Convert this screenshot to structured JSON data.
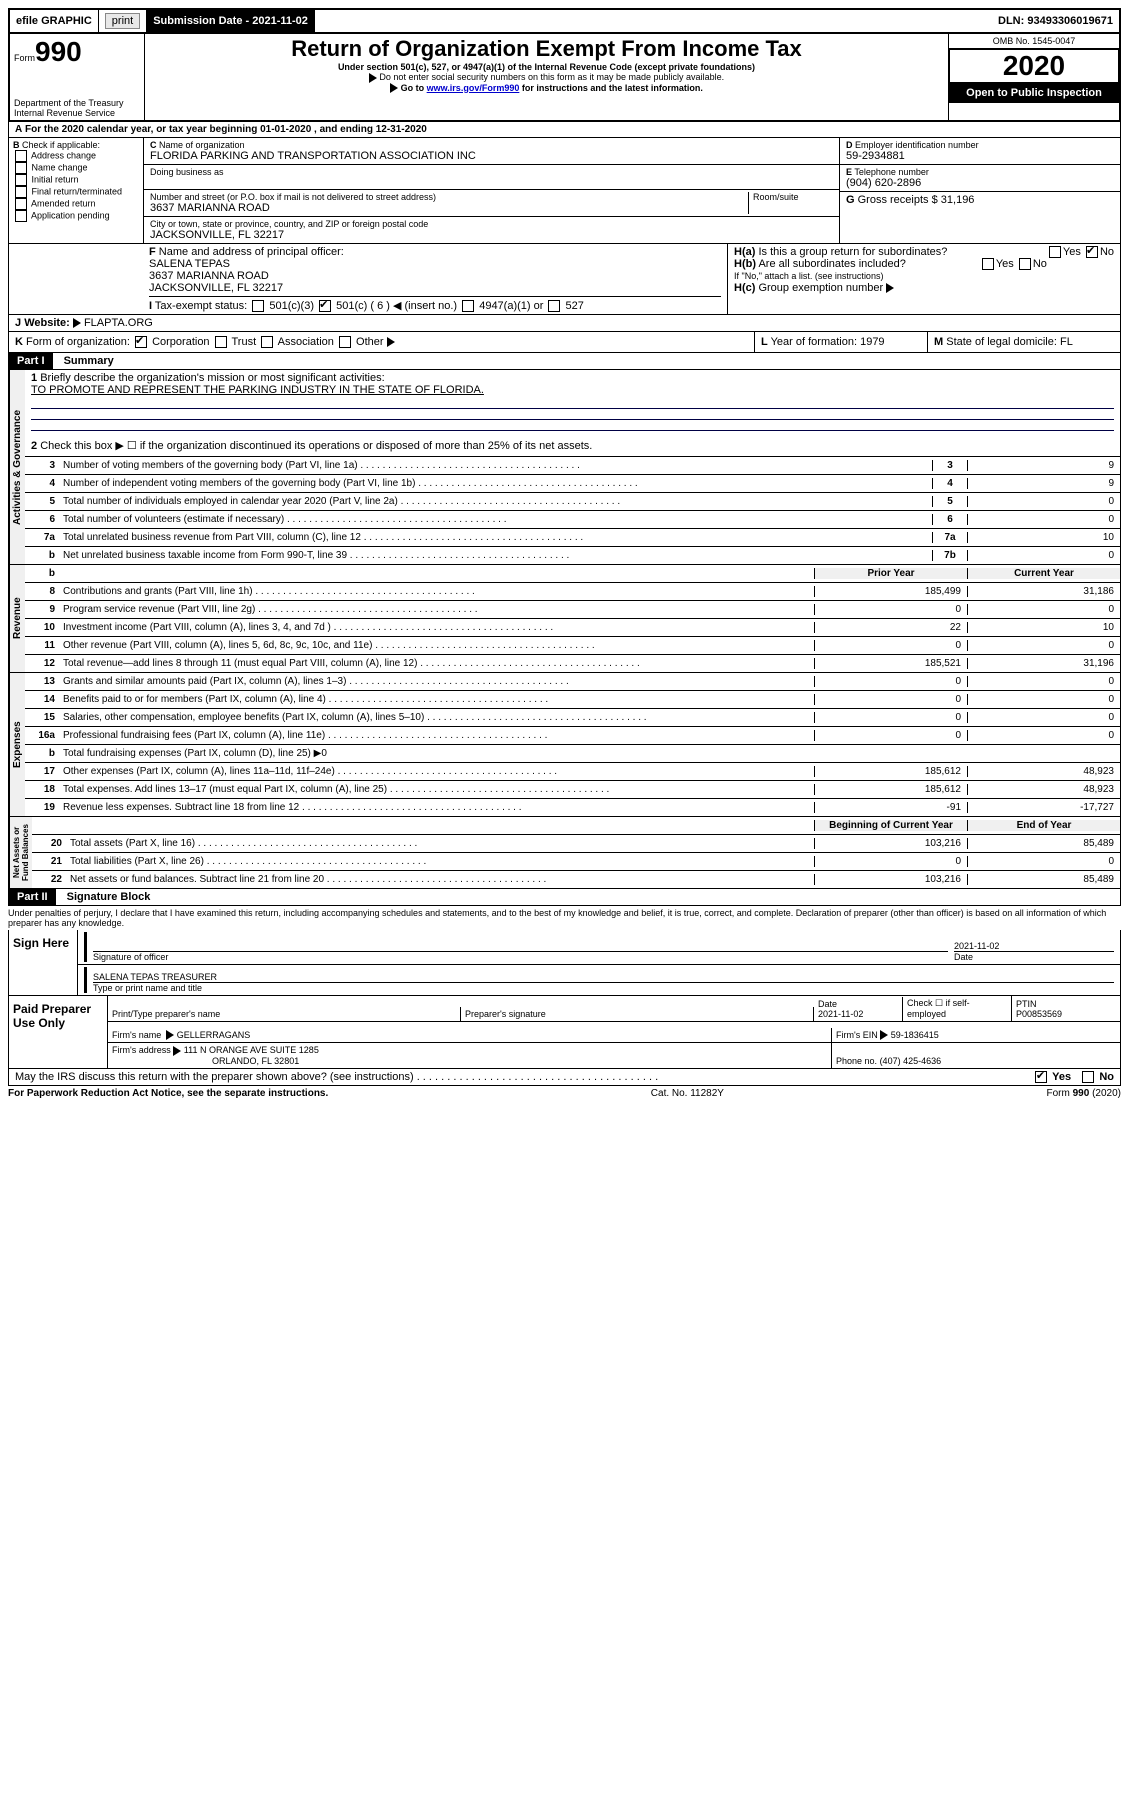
{
  "topbar": {
    "efile": "efile GRAPHIC",
    "print": "print",
    "subdate_label": "Submission Date - 2021-11-02",
    "dln": "DLN: 93493306019671"
  },
  "header": {
    "form_label": "Form",
    "form_no": "990",
    "dept": "Department of the Treasury",
    "irs": "Internal Revenue Service",
    "title": "Return of Organization Exempt From Income Tax",
    "subtitle": "Under section 501(c), 527, or 4947(a)(1) of the Internal Revenue Code (except private foundations)",
    "note1": "Do not enter social security numbers on this form as it may be made publicly available.",
    "note2_a": "Go to ",
    "note2_link": "www.irs.gov/Form990",
    "note2_b": " for instructions and the latest information.",
    "omb": "OMB No. 1545-0047",
    "year": "2020",
    "open": "Open to Public Inspection"
  },
  "A": {
    "text": "For the 2020 calendar year, or tax year beginning 01-01-2020    , and ending 12-31-2020"
  },
  "B": {
    "label": "Check if applicable:",
    "opts": [
      "Address change",
      "Name change",
      "Initial return",
      "Final return/terminated",
      "Amended return",
      "Application pending"
    ]
  },
  "C": {
    "name_label": "Name of organization",
    "name": "FLORIDA PARKING AND TRANSPORTATION ASSOCIATION INC",
    "dba_label": "Doing business as",
    "street_label": "Number and street (or P.O. box if mail is not delivered to street address)",
    "room_label": "Room/suite",
    "street": "3637 MARIANNA ROAD",
    "city_label": "City or town, state or province, country, and ZIP or foreign postal code",
    "city": "JACKSONVILLE, FL  32217"
  },
  "D": {
    "label": "Employer identification number",
    "val": "59-2934881"
  },
  "E": {
    "label": "Telephone number",
    "val": "(904) 620-2896"
  },
  "G": {
    "label": "Gross receipts $",
    "val": "31,196"
  },
  "F": {
    "label": "Name and address of principal officer:",
    "name": "SALENA TEPAS",
    "addr1": "3637 MARIANNA ROAD",
    "addr2": "JACKSONVILLE, FL  32217"
  },
  "H": {
    "a": "Is this a group return for subordinates?",
    "b": "Are all subordinates included?",
    "note": "If \"No,\" attach a list. (see instructions)",
    "c": "Group exemption number"
  },
  "I": {
    "label": "Tax-exempt status:",
    "opts": [
      "501(c)(3)",
      "501(c) ( 6 )",
      "(insert no.)",
      "4947(a)(1) or",
      "527"
    ]
  },
  "J": {
    "label": "Website:",
    "val": "FLAPTA.ORG"
  },
  "K": {
    "label": "Form of organization:",
    "opts": [
      "Corporation",
      "Trust",
      "Association",
      "Other"
    ]
  },
  "L": {
    "label": "Year of formation:",
    "val": "1979"
  },
  "M": {
    "label": "State of legal domicile:",
    "val": "FL"
  },
  "part1": {
    "label": "Part I",
    "title": "Summary",
    "q1": "Briefly describe the organization's mission or most significant activities:",
    "q1a": "TO PROMOTE AND REPRESENT THE PARKING INDUSTRY IN THE STATE OF FLORIDA.",
    "q2": "Check this box ▶ ☐  if the organization discontinued its operations or disposed of more than 25% of its net assets."
  },
  "gov": [
    {
      "n": "3",
      "t": "Number of voting members of the governing body (Part VI, line 1a)",
      "b": "3",
      "v2": "9"
    },
    {
      "n": "4",
      "t": "Number of independent voting members of the governing body (Part VI, line 1b)",
      "b": "4",
      "v2": "9"
    },
    {
      "n": "5",
      "t": "Total number of individuals employed in calendar year 2020 (Part V, line 2a)",
      "b": "5",
      "v2": "0"
    },
    {
      "n": "6",
      "t": "Total number of volunteers (estimate if necessary)",
      "b": "6",
      "v2": "0"
    },
    {
      "n": "7a",
      "t": "Total unrelated business revenue from Part VIII, column (C), line 12",
      "b": "7a",
      "v2": "10"
    },
    {
      "n": "b",
      "t": "Net unrelated business taxable income from Form 990-T, line 39",
      "b": "7b",
      "v2": "0"
    }
  ],
  "rev_hdr": {
    "py": "Prior Year",
    "cy": "Current Year"
  },
  "rev": [
    {
      "n": "8",
      "t": "Contributions and grants (Part VIII, line 1h)",
      "v1": "185,499",
      "v2": "31,186"
    },
    {
      "n": "9",
      "t": "Program service revenue (Part VIII, line 2g)",
      "v1": "0",
      "v2": "0"
    },
    {
      "n": "10",
      "t": "Investment income (Part VIII, column (A), lines 3, 4, and 7d )",
      "v1": "22",
      "v2": "10"
    },
    {
      "n": "11",
      "t": "Other revenue (Part VIII, column (A), lines 5, 6d, 8c, 9c, 10c, and 11e)",
      "v1": "0",
      "v2": "0"
    },
    {
      "n": "12",
      "t": "Total revenue—add lines 8 through 11 (must equal Part VIII, column (A), line 12)",
      "v1": "185,521",
      "v2": "31,196"
    }
  ],
  "exp": [
    {
      "n": "13",
      "t": "Grants and similar amounts paid (Part IX, column (A), lines 1–3)",
      "v1": "0",
      "v2": "0"
    },
    {
      "n": "14",
      "t": "Benefits paid to or for members (Part IX, column (A), line 4)",
      "v1": "0",
      "v2": "0"
    },
    {
      "n": "15",
      "t": "Salaries, other compensation, employee benefits (Part IX, column (A), lines 5–10)",
      "v1": "0",
      "v2": "0"
    },
    {
      "n": "16a",
      "t": "Professional fundraising fees (Part IX, column (A), line 11e)",
      "v1": "0",
      "v2": "0"
    },
    {
      "n": "b",
      "t": "Total fundraising expenses (Part IX, column (D), line 25) ▶0",
      "v1": "",
      "v2": ""
    },
    {
      "n": "17",
      "t": "Other expenses (Part IX, column (A), lines 11a–11d, 11f–24e)",
      "v1": "185,612",
      "v2": "48,923"
    },
    {
      "n": "18",
      "t": "Total expenses. Add lines 13–17 (must equal Part IX, column (A), line 25)",
      "v1": "185,612",
      "v2": "48,923"
    },
    {
      "n": "19",
      "t": "Revenue less expenses. Subtract line 18 from line 12",
      "v1": "-91",
      "v2": "-17,727"
    }
  ],
  "na_hdr": {
    "py": "Beginning of Current Year",
    "cy": "End of Year"
  },
  "na": [
    {
      "n": "20",
      "t": "Total assets (Part X, line 16)",
      "v1": "103,216",
      "v2": "85,489"
    },
    {
      "n": "21",
      "t": "Total liabilities (Part X, line 26)",
      "v1": "0",
      "v2": "0"
    },
    {
      "n": "22",
      "t": "Net assets or fund balances. Subtract line 21 from line 20",
      "v1": "103,216",
      "v2": "85,489"
    }
  ],
  "part2": {
    "label": "Part II",
    "title": "Signature Block",
    "decl": "Under penalties of perjury, I declare that I have examined this return, including accompanying schedules and statements, and to the best of my knowledge and belief, it is true, correct, and complete. Declaration of preparer (other than officer) is based on all information of which preparer has any knowledge."
  },
  "sign": {
    "here": "Sign Here",
    "sig_label": "Signature of officer",
    "date_label": "Date",
    "date": "2021-11-02",
    "name": "SALENA TEPAS TREASURER",
    "name_label": "Type or print name and title"
  },
  "paid": {
    "label": "Paid Preparer Use Only",
    "c1": "Print/Type preparer's name",
    "c2": "Preparer's signature",
    "c3": "Date",
    "c3v": "2021-11-02",
    "c4": "Check ☐ if self-employed",
    "c5": "PTIN",
    "c5v": "P00853569",
    "firm_label": "Firm's name",
    "firm": "GELLERRAGANS",
    "ein_label": "Firm's EIN",
    "ein": "59-1836415",
    "addr_label": "Firm's address",
    "addr1": "111 N ORANGE AVE SUITE 1285",
    "addr2": "ORLANDO, FL  32801",
    "phone_label": "Phone no.",
    "phone": "(407) 425-4636"
  },
  "discuss": "May the IRS discuss this return with the preparer shown above? (see instructions)",
  "footer": {
    "l": "For Paperwork Reduction Act Notice, see the separate instructions.",
    "m": "Cat. No. 11282Y",
    "r": "Form 990 (2020)"
  },
  "yesno": {
    "yes": "Yes",
    "no": "No"
  }
}
